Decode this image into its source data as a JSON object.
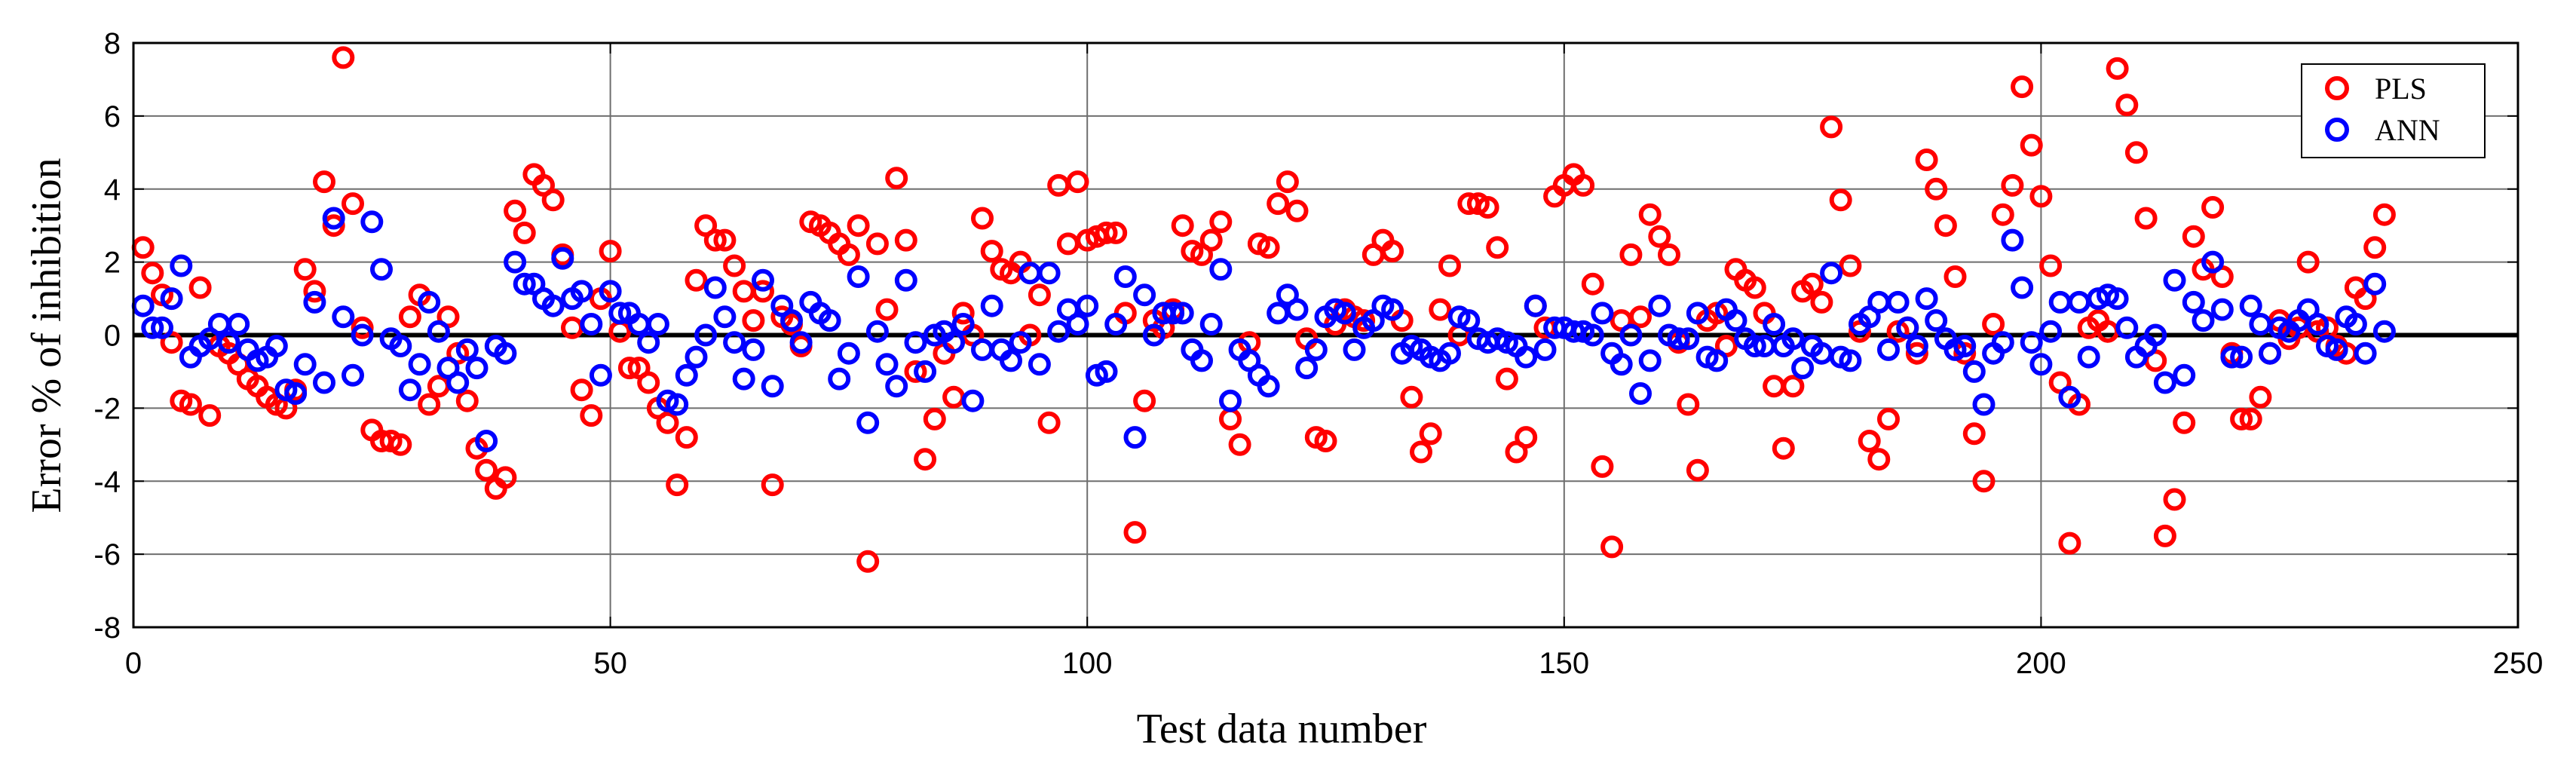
{
  "chart_data": {
    "type": "scatter",
    "title": "",
    "xlabel": "Test data number",
    "ylabel": "Error % of inhibition",
    "xlim": [
      0,
      250
    ],
    "ylim": [
      -8,
      8
    ],
    "xticks": [
      0,
      50,
      100,
      150,
      200,
      250
    ],
    "yticks": [
      -8,
      -6,
      -4,
      -2,
      0,
      2,
      4,
      6,
      8
    ],
    "grid": true,
    "zero_line": true,
    "legend_position": "top-right",
    "series": [
      {
        "name": "PLS",
        "color": "#ff0000",
        "marker": "open-circle",
        "values": [
          2.4,
          1.7,
          1.1,
          -0.2,
          -1.8,
          -1.9,
          1.3,
          -2.2,
          -0.3,
          -0.5,
          -0.8,
          -1.2,
          -1.4,
          -1.7,
          -1.9,
          -2.0,
          -1.5,
          1.8,
          1.2,
          4.2,
          3.0,
          7.6,
          3.6,
          0.2,
          -2.6,
          -2.9,
          -2.9,
          -3.0,
          0.5,
          1.1,
          -1.9,
          -1.4,
          0.5,
          -0.5,
          -1.8,
          -3.1,
          -3.7,
          -4.2,
          -3.9,
          3.4,
          2.8,
          4.4,
          4.1,
          3.7,
          2.2,
          0.2,
          -1.5,
          -2.2,
          1.0,
          2.3,
          0.1,
          -0.9,
          -0.9,
          -1.3,
          -2.0,
          -2.4,
          -4.1,
          -2.8,
          1.5,
          3.0,
          2.6,
          2.6,
          1.9,
          1.2,
          0.4,
          1.2,
          -4.1,
          0.5,
          0.3,
          -0.3,
          3.1,
          3.0,
          2.8,
          2.5,
          2.2,
          3.0,
          -6.2,
          2.5,
          0.7,
          4.3,
          2.6,
          -1.0,
          -3.4,
          -2.3,
          -0.5,
          -1.7,
          0.6,
          0.0,
          3.2,
          2.3,
          1.8,
          1.7,
          2.0,
          0.0,
          1.1,
          -2.4,
          4.1,
          2.5,
          4.2,
          2.6,
          2.7,
          2.8,
          2.8,
          0.6,
          -5.4,
          -1.8,
          0.4,
          0.2,
          0.7,
          3.0,
          2.3,
          2.2,
          2.6,
          3.1,
          -2.3,
          -3.0,
          -0.2,
          2.5,
          2.4,
          3.6,
          4.2,
          3.4,
          -0.1,
          -2.8,
          -2.9,
          0.3,
          0.7,
          0.5,
          0.4,
          2.2,
          2.6,
          2.3,
          0.4,
          -1.7,
          -3.2,
          -2.7,
          0.7,
          1.9,
          0.0,
          3.6,
          3.6,
          3.5,
          2.4,
          -1.2,
          -3.2,
          -2.8,
          0.8,
          0.2,
          3.8,
          4.1,
          4.4,
          4.1,
          1.4,
          -3.6,
          -5.8,
          0.4,
          2.2,
          0.5,
          3.3,
          2.7,
          2.2,
          -0.2,
          -1.9,
          -3.7,
          0.4,
          0.6,
          -0.3,
          1.8,
          1.5,
          1.3,
          0.6,
          -1.4,
          -3.1,
          -1.4,
          1.2,
          1.4,
          0.9,
          5.7,
          3.7,
          1.9,
          0.1,
          -2.9,
          -3.4,
          -2.3,
          0.1,
          0.2,
          -0.5,
          4.8,
          4.0,
          3.0,
          1.6,
          -0.5,
          -2.7,
          -4.0,
          0.3,
          3.3,
          4.1,
          6.8,
          5.2,
          3.8,
          1.9,
          -1.3,
          -5.7,
          -1.9,
          0.2,
          0.4,
          0.1,
          7.3,
          6.3,
          5.0,
          3.2,
          -0.7,
          -5.5,
          -4.5,
          -2.4,
          2.7,
          1.8,
          3.5,
          1.6,
          -0.5,
          -2.3,
          -2.3,
          -1.7,
          -0.5,
          0.4,
          -0.1,
          0.2,
          2.0,
          0.1,
          0.2,
          -0.3,
          -0.5,
          1.3,
          1.0,
          2.4,
          3.3
        ]
      },
      {
        "name": "ANN",
        "color": "#0000ff",
        "marker": "open-circle",
        "values": [
          0.8,
          0.2,
          0.2,
          1.0,
          1.9,
          -0.6,
          -0.3,
          -0.1,
          0.3,
          -0.2,
          0.3,
          -0.4,
          -0.7,
          -0.6,
          -0.3,
          -1.5,
          -1.6,
          -0.8,
          0.9,
          -1.3,
          3.2,
          0.5,
          -1.1,
          0.0,
          3.1,
          1.8,
          -0.1,
          -0.3,
          -1.5,
          -0.8,
          0.9,
          0.1,
          -0.9,
          -1.3,
          -0.4,
          -0.9,
          -2.9,
          -0.3,
          -0.5,
          2.0,
          1.4,
          1.4,
          1.0,
          0.8,
          2.1,
          1.0,
          1.2,
          0.3,
          -1.1,
          1.2,
          0.6,
          0.6,
          0.3,
          -0.2,
          0.3,
          -1.8,
          -1.9,
          -1.1,
          -0.6,
          0.0,
          1.3,
          0.5,
          -0.2,
          -1.2,
          -0.4,
          1.5,
          -1.4,
          0.8,
          0.4,
          -0.2,
          0.9,
          0.6,
          0.4,
          -1.2,
          -0.5,
          1.6,
          -2.4,
          0.1,
          -0.8,
          -1.4,
          1.5,
          -0.2,
          -1.0,
          0.0,
          0.1,
          -0.2,
          0.3,
          -1.8,
          -0.4,
          0.8,
          -0.4,
          -0.7,
          -0.2,
          1.7,
          -0.8,
          1.7,
          0.1,
          0.7,
          0.3,
          0.8,
          -1.1,
          -1.0,
          0.3,
          1.6,
          -2.8,
          1.1,
          0.0,
          0.6,
          0.6,
          0.6,
          -0.4,
          -0.7,
          0.3,
          1.8,
          -1.8,
          -0.4,
          -0.7,
          -1.1,
          -1.4,
          0.6,
          1.1,
          0.7,
          -0.9,
          -0.4,
          0.5,
          0.7,
          0.6,
          -0.4,
          0.2,
          0.4,
          0.8,
          0.7,
          -0.5,
          -0.3,
          -0.4,
          -0.6,
          -0.7,
          -0.5,
          0.5,
          0.4,
          -0.1,
          -0.2,
          -0.1,
          -0.2,
          -0.3,
          -0.6,
          0.8,
          -0.4,
          0.2,
          0.2,
          0.1,
          0.1,
          0.0,
          0.6,
          -0.5,
          -0.8,
          0.0,
          -1.6,
          -0.7,
          0.8,
          0.0,
          -0.1,
          -0.1,
          0.6,
          -0.6,
          -0.7,
          0.7,
          0.4,
          -0.1,
          -0.3,
          -0.3,
          0.3,
          -0.3,
          -0.1,
          -0.9,
          -0.3,
          -0.5,
          1.7,
          -0.6,
          -0.7,
          0.3,
          0.5,
          0.9,
          -0.4,
          0.9,
          0.2,
          -0.3,
          1.0,
          0.4,
          -0.1,
          -0.4,
          -0.3,
          -1.0,
          -1.9,
          -0.5,
          -0.2,
          2.6,
          1.3,
          -0.2,
          -0.8,
          0.1,
          0.9,
          -1.7,
          0.9,
          -0.6,
          1.0,
          1.1,
          1.0,
          0.2,
          -0.6,
          -0.3,
          0.0,
          -1.3,
          1.5,
          -1.1,
          0.9,
          0.4,
          2.0,
          0.7,
          -0.6,
          -0.6,
          0.8,
          0.3,
          -0.5,
          0.2,
          0.1,
          0.4,
          0.7,
          0.3,
          -0.3,
          -0.4,
          0.5,
          0.3,
          -0.5,
          1.4,
          0.1
        ]
      }
    ]
  }
}
